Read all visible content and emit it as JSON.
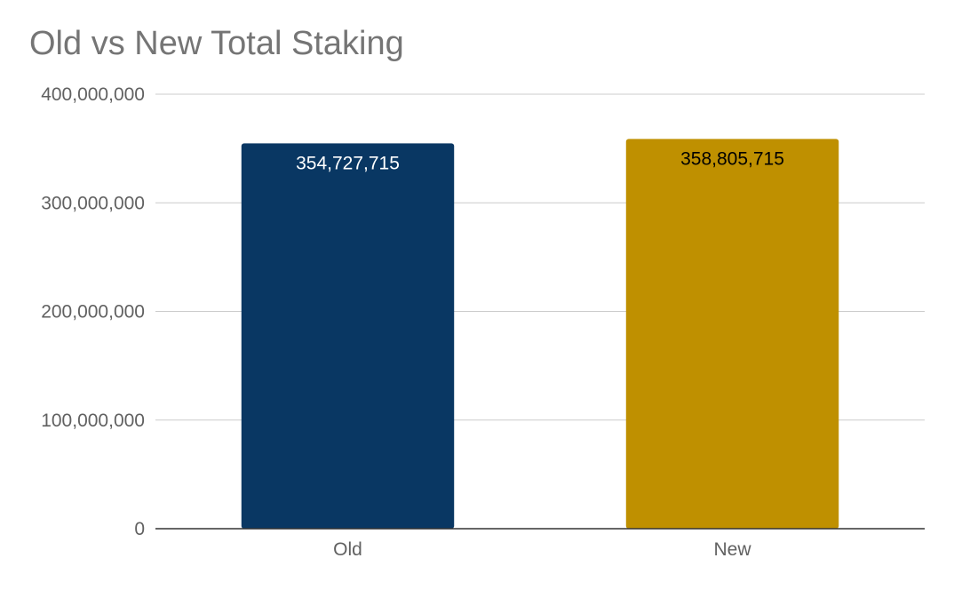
{
  "chart_data": {
    "type": "bar",
    "title": "Old vs New Total Staking",
    "xlabel": "",
    "ylabel": "",
    "categories": [
      "Old",
      "New"
    ],
    "values": [
      354727715,
      358805715
    ],
    "data_labels": [
      "354,727,715",
      "358,805,715"
    ],
    "bar_colors": [
      "#093763",
      "#bf9000"
    ],
    "data_label_colors": [
      "#ffffff",
      "#000000"
    ],
    "ylim": [
      0,
      400000000
    ],
    "y_ticks": [
      0,
      100000000,
      200000000,
      300000000,
      400000000
    ],
    "y_tick_labels": [
      "0",
      "100,000,000",
      "200,000,000",
      "300,000,000",
      "400,000,000"
    ],
    "grid": true,
    "legend": "none"
  }
}
